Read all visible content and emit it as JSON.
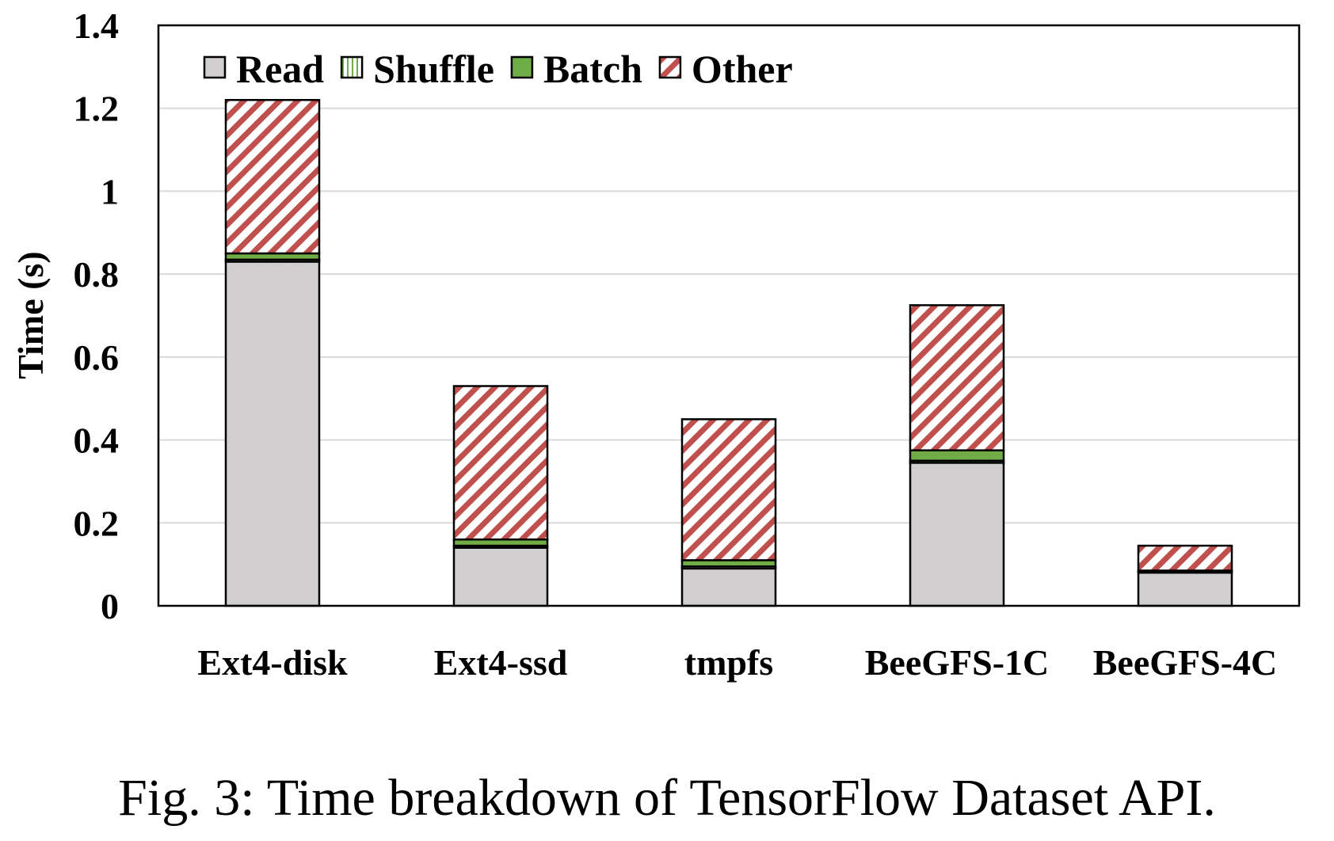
{
  "caption": "Fig. 3: Time breakdown of TensorFlow Dataset API.",
  "chart_data": {
    "type": "bar",
    "stacked": true,
    "title": "",
    "xlabel": "",
    "ylabel": "Time (s)",
    "ylim": [
      0,
      1.4
    ],
    "yticks": [
      0,
      0.2,
      0.4,
      0.6,
      0.8,
      1,
      1.2,
      1.4
    ],
    "ytick_labels": [
      "0",
      "0.2",
      "0.4",
      "0.6",
      "0.8",
      "1",
      "1.2",
      "1.4"
    ],
    "grid": "horizontal",
    "legend_position": "top-left",
    "categories": [
      "Ext4-disk",
      "Ext4-ssd",
      "tmpfs",
      "BeeGFS-1C",
      "BeeGFS-4C"
    ],
    "series": [
      {
        "name": "Read",
        "values": [
          0.83,
          0.14,
          0.09,
          0.345,
          0.08
        ],
        "color": "#d0cece",
        "pattern": "solid"
      },
      {
        "name": "Shuffle",
        "values": [
          0.005,
          0.005,
          0.005,
          0.005,
          0.003
        ],
        "color": "#70ad47",
        "pattern": "vertical-lines"
      },
      {
        "name": "Batch",
        "values": [
          0.015,
          0.015,
          0.015,
          0.025,
          0.002
        ],
        "color": "#70ad47",
        "pattern": "solid"
      },
      {
        "name": "Other",
        "values": [
          0.37,
          0.37,
          0.34,
          0.35,
          0.06
        ],
        "color": "#c0504d",
        "pattern": "diagonal-stripes"
      }
    ]
  }
}
